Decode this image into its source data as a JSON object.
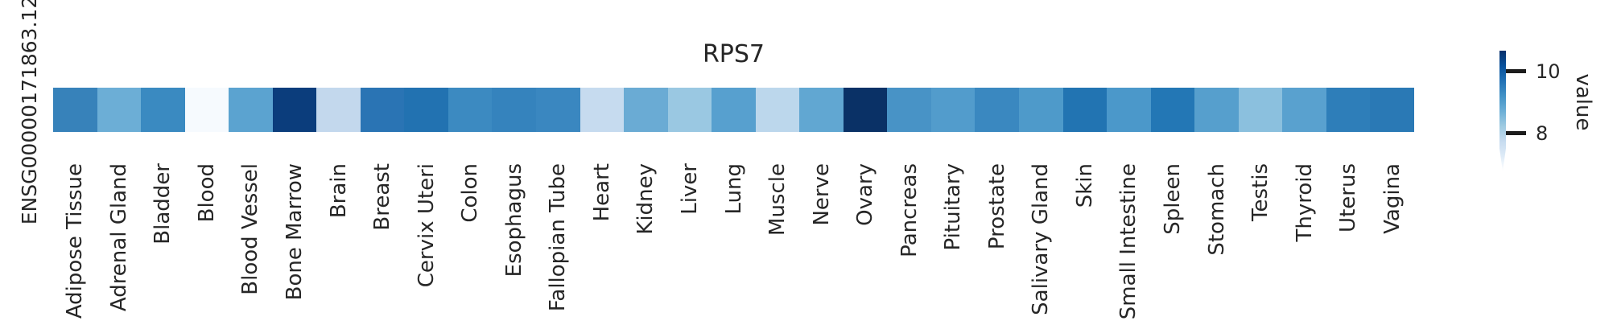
{
  "figure": {
    "title": "RPS7",
    "y_axis_label": "ENSG00000171863.12"
  },
  "chart_data": {
    "type": "heatmap",
    "title": "RPS7",
    "colormap": "Blues",
    "rows": [
      "ENSG00000171863.12"
    ],
    "categories": [
      "Adipose Tissue",
      "Adrenal Gland",
      "Bladder",
      "Blood",
      "Blood Vessel",
      "Bone Marrow",
      "Brain",
      "Breast",
      "Cervix Uteri",
      "Colon",
      "Esophagus",
      "Fallopian Tube",
      "Heart",
      "Kidney",
      "Liver",
      "Lung",
      "Muscle",
      "Nerve",
      "Ovary",
      "Pancreas",
      "Pituitary",
      "Prostate",
      "Salivary Gland",
      "Skin",
      "Small Intestine",
      "Spleen",
      "Stomach",
      "Testis",
      "Thyroid",
      "Uterus",
      "Vagina"
    ],
    "series": [
      {
        "name": "ENSG00000171863.12",
        "values": [
          9.4,
          8.8,
          9.3,
          7.1,
          9.0,
          10.4,
          7.9,
          9.6,
          9.65,
          9.3,
          9.4,
          9.3,
          7.9,
          8.8,
          8.4,
          9.0,
          8.0,
          8.9,
          10.6,
          9.2,
          9.1,
          9.3,
          9.15,
          9.6,
          9.15,
          9.55,
          9.05,
          8.5,
          9.0,
          9.5,
          9.55
        ]
      }
    ],
    "cell_colors": [
      "#3782ba",
      "#6caed6",
      "#3a8ac1",
      "#f6fafe",
      "#5ba3d0",
      "#0b3d7c",
      "#c3d8ed",
      "#2a74b4",
      "#2272b1",
      "#3c8ac1",
      "#3583bd",
      "#3a87c0",
      "#c6dbef",
      "#6aabd4",
      "#9ac8e2",
      "#57a0cf",
      "#bcd7ec",
      "#61a7d2",
      "#0a3166",
      "#4893c6",
      "#529ccc",
      "#3a88c0",
      "#4e9aca",
      "#2274b2",
      "#4b98ca",
      "#2377b5",
      "#569fcd",
      "#8bc0de",
      "#59a1cf",
      "#2e7eb9",
      "#2a79b5"
    ],
    "colorbar": {
      "label": "value",
      "ticks": [
        "10",
        "8"
      ],
      "tick_values": [
        10,
        8
      ],
      "approx_value_range": [
        6.9,
        10.65
      ],
      "gradient_top_to_bottom": [
        "#08306b",
        "#08519c",
        "#2171b5",
        "#4292c6",
        "#6baed6",
        "#9ecae1",
        "#c6dbef",
        "#deebf7",
        "#ffffff"
      ]
    },
    "legend_position": "right",
    "grid": false
  }
}
